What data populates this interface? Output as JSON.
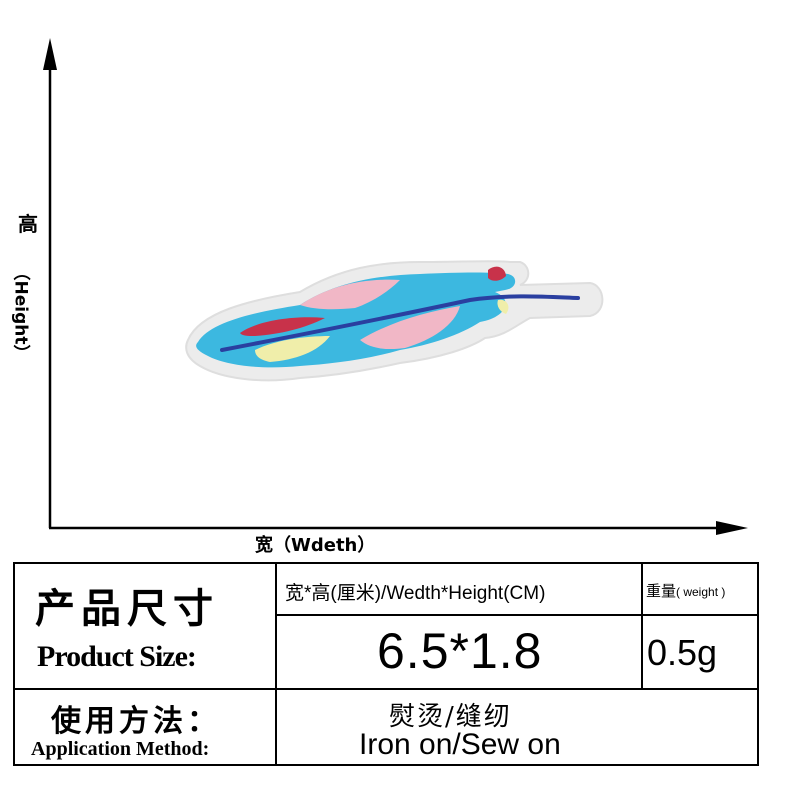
{
  "axes": {
    "y_label_cn": "高",
    "y_label_en": "（Height）",
    "x_label": "宽（Wdeth）"
  },
  "product_image": {
    "icon": "feather-patch-icon",
    "colors": {
      "border": "#e6e6e6",
      "cyan": "#3cb8e0",
      "pink": "#f1b7c6",
      "red": "#c8324a",
      "yellow": "#f0eeaa",
      "quill": "#2a3fa0"
    }
  },
  "table": {
    "product_size_cn": "产品尺寸",
    "product_size_en": "Product Size:",
    "size_header": "宽*高(厘米)/Wedth*Height(CM)",
    "weight_header_cn": "重量",
    "weight_header_en": "( weight )",
    "size_value": "6.5*1.8",
    "weight_value": "0.5g",
    "method_cn": "使用方法：",
    "method_en": "Application Method:",
    "method_value_cn": "熨烫/缝纫",
    "method_value_en": "Iron on/Sew on"
  }
}
